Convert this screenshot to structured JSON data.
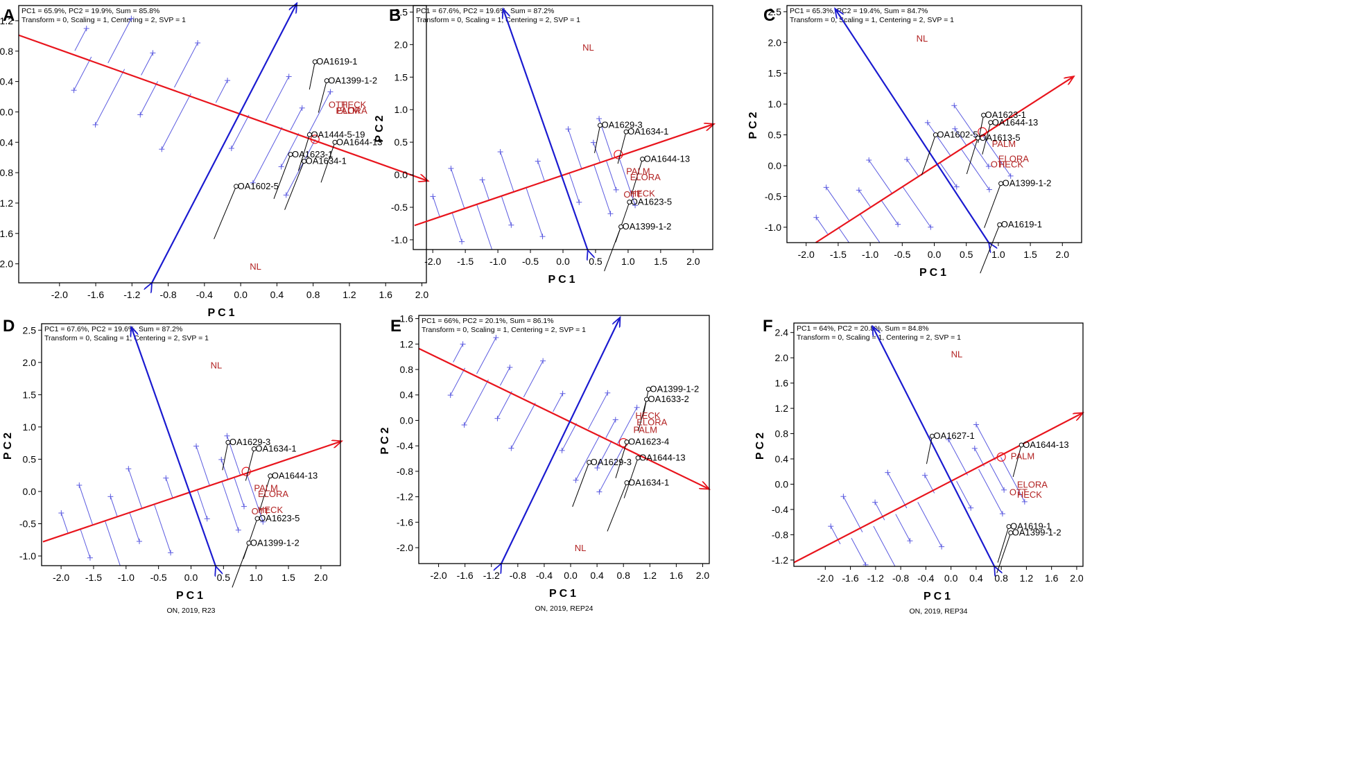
{
  "panels": [
    {
      "label": "A",
      "header1": "PC1 = 65.9%, PC2 = 19.9%, Sum = 85.8%",
      "header2": "Transform = 0, Scaling = 1, Centering = 2, SVP = 1",
      "xlabel": "PC1",
      "ylabel": "PC2",
      "xticks": [
        "-2.0",
        "-1.6",
        "-1.2",
        "-0.8",
        "-0.4",
        "0.0",
        "0.4",
        "0.8",
        "1.2",
        "1.6",
        "2.0"
      ],
      "yticks": [
        "1.2",
        "0.8",
        "0.4",
        "0.0",
        "-0.4",
        "-0.8",
        "-1.2",
        "-1.6",
        "-2.0"
      ],
      "genotypes": [
        "OA1619-1",
        "OA1399-1-2",
        "OA1444-5-19",
        "OA1644-13",
        "OA1623-1",
        "OA1634-1",
        "OA1602-5"
      ],
      "environments": [
        "OTT",
        "HECK",
        "PALM",
        "ELORA",
        "NL"
      ],
      "caption": ""
    },
    {
      "label": "B",
      "header1": "PC1 = 67.6%, PC2 = 19.6%, Sum = 87.2%",
      "header2": "Transform = 0, Scaling = 1, Centering = 2, SVP = 1",
      "xlabel": "PC1",
      "ylabel": "PC2",
      "xticks": [
        "-2.0",
        "-1.5",
        "-1.0",
        "-0.5",
        "0.0",
        "0.5",
        "1.0",
        "1.5",
        "2.0"
      ],
      "yticks": [
        "2.5",
        "2.0",
        "1.5",
        "1.0",
        "0.5",
        "0.0",
        "-0.5",
        "-1.0"
      ],
      "genotypes": [
        "OA1629-3",
        "OA1634-1",
        "OA1644-13",
        "OA1623-5",
        "OA1399-1-2"
      ],
      "environments": [
        "NL",
        "PALM",
        "ELORA",
        "OTT",
        "HECK"
      ],
      "caption": ""
    },
    {
      "label": "C",
      "header1": "PC1 = 65.3%, PC2 = 19.4%, Sum = 84.7%",
      "header2": "Transform = 0, Scaling = 1, Centering = 2, SVP = 1",
      "xlabel": "PC1",
      "ylabel": "PC2",
      "xticks": [
        "-2.0",
        "-1.5",
        "-1.0",
        "-0.5",
        "0.0",
        "0.5",
        "1.0",
        "1.5",
        "2.0"
      ],
      "yticks": [
        "2.5",
        "2.0",
        "1.5",
        "1.0",
        "0.5",
        "0.0",
        "-0.5",
        "-1.0"
      ],
      "genotypes": [
        "OA1623-1",
        "OA1644-13",
        "OA1613-5",
        "OA1602-5",
        "OA1399-1-2",
        "OA1619-1"
      ],
      "environments": [
        "NL",
        "PALM",
        "ELORA",
        "OTT",
        "HECK"
      ],
      "caption": ""
    },
    {
      "label": "D",
      "header1": "PC1 = 67.6%, PC2 = 19.6%, Sum = 87.2%",
      "header2": "Transform = 0, Scaling = 1, Centering = 2, SVP = 1",
      "xlabel": "PC1",
      "ylabel": "PC2",
      "xticks": [
        "-2.0",
        "-1.5",
        "-1.0",
        "-0.5",
        "0.0",
        "0.5",
        "1.0",
        "1.5",
        "2.0"
      ],
      "yticks": [
        "2.5",
        "2.0",
        "1.5",
        "1.0",
        "0.5",
        "0.0",
        "-0.5",
        "-1.0"
      ],
      "genotypes": [
        "OA1629-3",
        "OA1634-1",
        "OA1644-13",
        "OA1623-5",
        "OA1399-1-2"
      ],
      "environments": [
        "NL",
        "PALM",
        "ELORA",
        "OTT",
        "HECK"
      ],
      "caption": "ON, 2019, R23"
    },
    {
      "label": "E",
      "header1": "PC1 = 66%, PC2 = 20.1%, Sum = 86.1%",
      "header2": "Transform = 0, Scaling = 1, Centering = 2, SVP = 1",
      "xlabel": "PC1",
      "ylabel": "PC2",
      "xticks": [
        "-2.0",
        "-1.6",
        "-1.2",
        "-0.8",
        "-0.4",
        "0.0",
        "0.4",
        "0.8",
        "1.2",
        "1.6",
        "2.0"
      ],
      "yticks": [
        "1.6",
        "1.2",
        "0.8",
        "0.4",
        "0.0",
        "-0.4",
        "-0.8",
        "-1.2",
        "-1.6",
        "-2.0"
      ],
      "genotypes": [
        "OA1399-1-2",
        "OA1633-2",
        "OA1623-4",
        "OA1644-13",
        "OA1629-3",
        "OA1634-1"
      ],
      "environments": [
        "HECK",
        "ELORA",
        "PALM",
        "NL"
      ],
      "caption": "ON, 2019, REP24"
    },
    {
      "label": "F",
      "header1": "PC1 = 64%, PC2 = 20.8%, Sum = 84.8%",
      "header2": "Transform = 0, Scaling = 1, Centering = 2, SVP = 1",
      "xlabel": "PC1",
      "ylabel": "PC2",
      "xticks": [
        "-2.0",
        "-1.6",
        "-1.2",
        "-0.8",
        "-0.4",
        "0.0",
        "0.4",
        "0.8",
        "1.2",
        "1.6",
        "2.0"
      ],
      "yticks": [
        "2.4",
        "2.0",
        "1.6",
        "1.2",
        "0.8",
        "0.4",
        "0.0",
        "-0.4",
        "-0.8",
        "-1.2"
      ],
      "genotypes": [
        "OA1627-1",
        "OA1644-13",
        "OA1619-1",
        "OA1399-1-2"
      ],
      "environments": [
        "NL",
        "PALM",
        "ELORA",
        "OTT",
        "HECK"
      ],
      "caption": "ON, 2019, REP34"
    }
  ],
  "chart_data": [
    {
      "type": "scatter",
      "panel": "A",
      "title": "",
      "xlabel": "PC1",
      "ylabel": "PC2",
      "xlim": [
        -2.45,
        2.05
      ],
      "ylim": [
        -2.25,
        1.4
      ],
      "origin": [
        0,
        0
      ],
      "ate_axis_end": [
        2.07,
        -0.91
      ],
      "ate_axis_start": [
        -2.45,
        1.01
      ],
      "perp_axis_end": [
        0.62,
        1.43
      ],
      "perp_axis_start": [
        -0.98,
        -2.25
      ],
      "avg_env_marker": [
        0.82,
        -0.36
      ],
      "genotype_points": [
        {
          "name": "OA1619-1",
          "x": 0.82,
          "y": 0.66
        },
        {
          "name": "OA1399-1-2",
          "x": 0.95,
          "y": 0.41
        },
        {
          "name": "OA1444-5-19",
          "x": 0.76,
          "y": -0.3
        },
        {
          "name": "OA1644-13",
          "x": 1.04,
          "y": -0.4
        },
        {
          "name": "OA1623-1",
          "x": 0.55,
          "y": -0.56
        },
        {
          "name": "OA1634-1",
          "x": 0.7,
          "y": -0.65
        },
        {
          "name": "OA1602-5",
          "x": -0.05,
          "y": -0.98
        }
      ],
      "environment_points": [
        {
          "name": "OTT",
          "x": 0.97,
          "y": 0.1
        },
        {
          "name": "HECK",
          "x": 1.11,
          "y": 0.1
        },
        {
          "name": "PALM",
          "x": 1.05,
          "y": 0.02
        },
        {
          "name": "ELORA",
          "x": 1.06,
          "y": 0.02
        },
        {
          "name": "NL",
          "x": 0.1,
          "y": -2.03
        }
      ]
    },
    {
      "type": "scatter",
      "panel": "B",
      "title": "",
      "xlabel": "PC1",
      "ylabel": "PC2",
      "xlim": [
        -2.3,
        2.3
      ],
      "ylim": [
        -1.15,
        2.6
      ],
      "origin": [
        0,
        0
      ],
      "ate_axis_end": [
        2.32,
        0.78
      ],
      "ate_axis_start": [
        -2.28,
        -0.78
      ],
      "perp_axis_end": [
        -0.92,
        2.55
      ],
      "perp_axis_start": [
        0.38,
        -1.16
      ],
      "avg_env_marker": [
        0.85,
        0.31
      ],
      "genotype_points": [
        {
          "name": "OA1629-3",
          "x": 0.57,
          "y": 0.76
        },
        {
          "name": "OA1634-1",
          "x": 0.97,
          "y": 0.66
        },
        {
          "name": "OA1644-13",
          "x": 1.22,
          "y": 0.24
        },
        {
          "name": "OA1623-5",
          "x": 1.02,
          "y": -0.42
        },
        {
          "name": "OA1399-1-2",
          "x": 0.89,
          "y": -0.8
        }
      ],
      "environment_points": [
        {
          "name": "NL",
          "x": 0.3,
          "y": 1.96
        },
        {
          "name": "PALM",
          "x": 0.97,
          "y": 0.06
        },
        {
          "name": "ELORA",
          "x": 1.03,
          "y": -0.03
        },
        {
          "name": "OTT",
          "x": 0.93,
          "y": -0.3
        },
        {
          "name": "HECK",
          "x": 1.03,
          "y": -0.28
        }
      ]
    },
    {
      "type": "scatter",
      "panel": "C",
      "title": "",
      "xlabel": "PC1",
      "ylabel": "PC2",
      "xlim": [
        -2.3,
        2.3
      ],
      "ylim": [
        -1.25,
        2.6
      ],
      "origin": [
        0,
        0
      ],
      "ate_axis_end": [
        2.18,
        1.45
      ],
      "ate_axis_start": [
        -1.85,
        -1.25
      ],
      "perp_axis_end": [
        -1.55,
        2.55
      ],
      "perp_axis_start": [
        0.85,
        -1.25
      ],
      "avg_env_marker": [
        0.75,
        0.55
      ],
      "genotype_points": [
        {
          "name": "OA1623-1",
          "x": 0.77,
          "y": 0.82
        },
        {
          "name": "OA1644-13",
          "x": 0.88,
          "y": 0.7
        },
        {
          "name": "OA1613-5",
          "x": 0.68,
          "y": 0.45
        },
        {
          "name": "OA1602-5",
          "x": 0.02,
          "y": 0.5
        },
        {
          "name": "OA1399-1-2",
          "x": 1.04,
          "y": -0.29
        },
        {
          "name": "OA1619-1",
          "x": 1.02,
          "y": -0.96
        }
      ],
      "environment_points": [
        {
          "name": "NL",
          "x": -0.28,
          "y": 2.07
        },
        {
          "name": "PALM",
          "x": 0.9,
          "y": 0.36
        },
        {
          "name": "ELORA",
          "x": 1.0,
          "y": 0.12
        },
        {
          "name": "OTT",
          "x": 0.88,
          "y": 0.03
        },
        {
          "name": "HECK",
          "x": 1.0,
          "y": 0.03
        }
      ]
    },
    {
      "type": "scatter",
      "panel": "D",
      "title": "",
      "xlabel": "PC1",
      "ylabel": "PC2",
      "xlim": [
        -2.3,
        2.3
      ],
      "ylim": [
        -1.15,
        2.6
      ],
      "origin": [
        0,
        0
      ],
      "ate_axis_end": [
        2.32,
        0.78
      ],
      "ate_axis_start": [
        -2.28,
        -0.78
      ],
      "perp_axis_end": [
        -0.92,
        2.55
      ],
      "perp_axis_start": [
        0.38,
        -1.16
      ],
      "avg_env_marker": [
        0.85,
        0.31
      ],
      "genotype_points": [
        {
          "name": "OA1629-3",
          "x": 0.57,
          "y": 0.76
        },
        {
          "name": "OA1634-1",
          "x": 0.97,
          "y": 0.66
        },
        {
          "name": "OA1644-13",
          "x": 1.22,
          "y": 0.24
        },
        {
          "name": "OA1623-5",
          "x": 1.02,
          "y": -0.42
        },
        {
          "name": "OA1399-1-2",
          "x": 0.89,
          "y": -0.8
        }
      ],
      "environment_points": [
        {
          "name": "NL",
          "x": 0.3,
          "y": 1.96
        },
        {
          "name": "PALM",
          "x": 0.97,
          "y": 0.06
        },
        {
          "name": "ELORA",
          "x": 1.03,
          "y": -0.03
        },
        {
          "name": "OTT",
          "x": 0.93,
          "y": -0.3
        },
        {
          "name": "HECK",
          "x": 1.03,
          "y": -0.28
        }
      ]
    },
    {
      "type": "scatter",
      "panel": "E",
      "title": "",
      "xlabel": "PC1",
      "ylabel": "PC2",
      "xlim": [
        -2.3,
        2.1
      ],
      "ylim": [
        -2.25,
        1.65
      ],
      "origin": [
        0,
        0
      ],
      "ate_axis_end": [
        2.1,
        -1.08
      ],
      "ate_axis_start": [
        -2.3,
        1.13
      ],
      "perp_axis_end": [
        0.75,
        1.62
      ],
      "perp_axis_start": [
        -1.05,
        -2.25
      ],
      "avg_env_marker": [
        0.8,
        -0.35
      ],
      "genotype_points": [
        {
          "name": "OA1399-1-2",
          "x": 1.18,
          "y": 0.49
        },
        {
          "name": "OA1633-2",
          "x": 1.15,
          "y": 0.33
        },
        {
          "name": "OA1623-4",
          "x": 0.85,
          "y": -0.34
        },
        {
          "name": "OA1644-13",
          "x": 1.02,
          "y": -0.59
        },
        {
          "name": "OA1629-3",
          "x": 0.28,
          "y": -0.66
        },
        {
          "name": "OA1634-1",
          "x": 0.85,
          "y": -0.98
        }
      ],
      "environment_points": [
        {
          "name": "HECK",
          "x": 0.98,
          "y": 0.08
        },
        {
          "name": "ELORA",
          "x": 1.0,
          "y": -0.02
        },
        {
          "name": "PALM",
          "x": 0.95,
          "y": -0.14
        },
        {
          "name": "NL",
          "x": 0.06,
          "y": -2.0
        }
      ]
    },
    {
      "type": "scatter",
      "panel": "F",
      "title": "",
      "xlabel": "PC1",
      "ylabel": "PC2",
      "xlim": [
        -2.5,
        2.1
      ],
      "ylim": [
        -1.3,
        2.55
      ],
      "origin": [
        0,
        0
      ],
      "ate_axis_end": [
        2.1,
        1.13
      ],
      "ate_axis_start": [
        -2.5,
        -1.24
      ],
      "perp_axis_end": [
        -1.25,
        2.5
      ],
      "perp_axis_start": [
        0.69,
        -1.3
      ],
      "avg_env_marker": [
        0.8,
        0.43
      ],
      "genotype_points": [
        {
          "name": "OA1627-1",
          "x": -0.3,
          "y": 0.76
        },
        {
          "name": "OA1644-13",
          "x": 1.12,
          "y": 0.62
        },
        {
          "name": "OA1619-1",
          "x": 0.92,
          "y": -0.67
        },
        {
          "name": "OA1399-1-2",
          "x": 0.95,
          "y": -0.77
        }
      ],
      "environment_points": [
        {
          "name": "NL",
          "x": 0.0,
          "y": 2.06
        },
        {
          "name": "PALM",
          "x": 0.95,
          "y": 0.45
        },
        {
          "name": "ELORA",
          "x": 1.05,
          "y": 0.0
        },
        {
          "name": "OTT",
          "x": 0.93,
          "y": -0.12
        },
        {
          "name": "HECK",
          "x": 1.05,
          "y": -0.16
        }
      ]
    }
  ]
}
